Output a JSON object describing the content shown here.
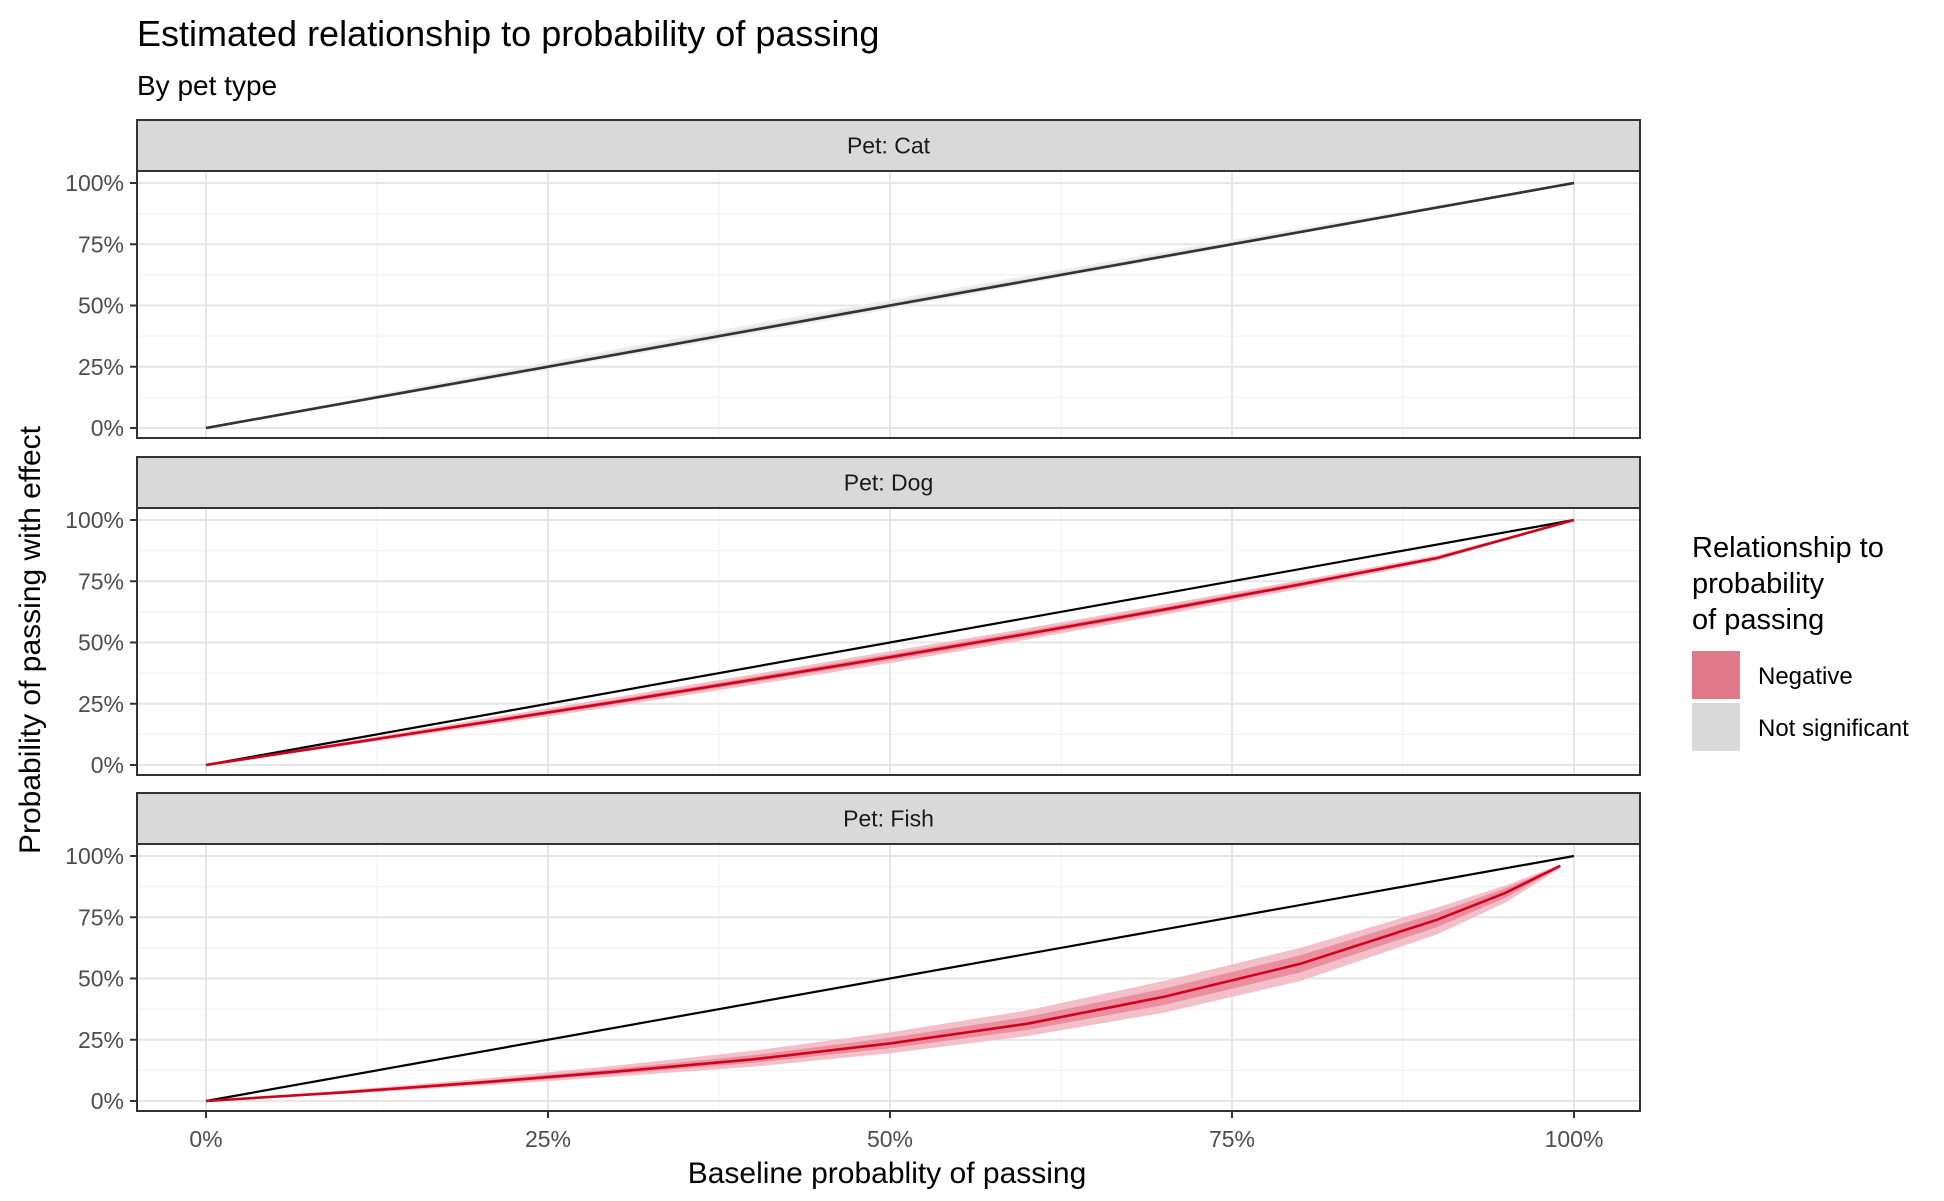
{
  "chart_data": {
    "type": "line",
    "title": "Estimated relationship to probability of passing",
    "subtitle": "By pet type",
    "xlabel": "Baseline probablity of passing",
    "ylabel": "Probability of passing with effect",
    "xlim": [
      0,
      1
    ],
    "ylim": [
      0,
      1
    ],
    "x_ticks": [
      "0%",
      "25%",
      "50%",
      "75%",
      "100%"
    ],
    "y_ticks": [
      "0%",
      "25%",
      "50%",
      "75%",
      "100%"
    ],
    "grid": true,
    "legend": {
      "title_lines": [
        "Relationship to",
        "probability",
        "of passing"
      ],
      "placement": "right",
      "items": [
        {
          "label": "Negative",
          "color": "#e07a8a"
        },
        {
          "label": "Not significant",
          "color": "#d9d9d9"
        }
      ]
    },
    "colors": {
      "negative_line": "#d0021b",
      "negative_band_outer": "#f2b8c2",
      "negative_band_inner": "#e8899a",
      "ns_line": "#333333",
      "ns_band_outer": "#ececec",
      "ns_band_inner": "#dcdcdc",
      "identity_line": "#000000",
      "strip_fill": "#d9d9d9"
    },
    "panels": [
      {
        "strip": "Pet: Cat",
        "relationship": "Not significant",
        "estimate": {
          "x": [
            0,
            0.1,
            0.2,
            0.3,
            0.4,
            0.5,
            0.6,
            0.7,
            0.8,
            0.9,
            1
          ],
          "y": [
            0,
            0.1,
            0.2,
            0.3,
            0.4,
            0.5,
            0.6,
            0.7,
            0.8,
            0.9,
            1
          ]
        },
        "band_outer": {
          "x": [
            0,
            0.1,
            0.2,
            0.3,
            0.4,
            0.5,
            0.6,
            0.7,
            0.8,
            0.9,
            1
          ],
          "lower": [
            0,
            0.095,
            0.19,
            0.287,
            0.385,
            0.485,
            0.588,
            0.69,
            0.793,
            0.896,
            1
          ],
          "upper": [
            0,
            0.11,
            0.217,
            0.322,
            0.424,
            0.523,
            0.622,
            0.72,
            0.816,
            0.909,
            1
          ]
        },
        "band_inner": {
          "x": [
            0,
            0.1,
            0.2,
            0.3,
            0.4,
            0.5,
            0.6,
            0.7,
            0.8,
            0.9,
            1
          ],
          "lower": [
            0,
            0.098,
            0.196,
            0.294,
            0.393,
            0.493,
            0.594,
            0.695,
            0.797,
            0.898,
            1
          ],
          "upper": [
            0,
            0.105,
            0.209,
            0.311,
            0.412,
            0.512,
            0.611,
            0.71,
            0.808,
            0.905,
            1
          ]
        }
      },
      {
        "strip": "Pet: Dog",
        "relationship": "Negative",
        "estimate": {
          "x": [
            0,
            0.1,
            0.2,
            0.3,
            0.4,
            0.5,
            0.6,
            0.7,
            0.8,
            0.9,
            1
          ],
          "y": [
            0,
            0.085,
            0.171,
            0.258,
            0.348,
            0.44,
            0.535,
            0.634,
            0.737,
            0.845,
            1
          ]
        },
        "band_outer": {
          "x": [
            0,
            0.1,
            0.2,
            0.3,
            0.4,
            0.5,
            0.6,
            0.7,
            0.8,
            0.9,
            1
          ],
          "lower": [
            0,
            0.077,
            0.157,
            0.24,
            0.327,
            0.416,
            0.512,
            0.613,
            0.72,
            0.834,
            1
          ],
          "upper": [
            0,
            0.093,
            0.186,
            0.277,
            0.37,
            0.464,
            0.558,
            0.655,
            0.754,
            0.856,
            1
          ]
        },
        "band_inner": {
          "x": [
            0,
            0.1,
            0.2,
            0.3,
            0.4,
            0.5,
            0.6,
            0.7,
            0.8,
            0.9,
            1
          ],
          "lower": [
            0,
            0.081,
            0.164,
            0.249,
            0.338,
            0.428,
            0.523,
            0.624,
            0.729,
            0.84,
            1
          ],
          "upper": [
            0,
            0.089,
            0.178,
            0.267,
            0.359,
            0.452,
            0.547,
            0.645,
            0.746,
            0.85,
            1
          ]
        }
      },
      {
        "strip": "Pet: Fish",
        "relationship": "Negative",
        "estimate": {
          "x": [
            0,
            0.1,
            0.2,
            0.3,
            0.4,
            0.5,
            0.6,
            0.7,
            0.8,
            0.9,
            0.95,
            0.99
          ],
          "y": [
            0,
            0.035,
            0.075,
            0.12,
            0.17,
            0.235,
            0.315,
            0.425,
            0.56,
            0.74,
            0.85,
            0.96
          ]
        },
        "band_outer": {
          "x": [
            0,
            0.1,
            0.2,
            0.3,
            0.4,
            0.5,
            0.6,
            0.7,
            0.8,
            0.9,
            0.95,
            0.99
          ],
          "lower": [
            0,
            0.028,
            0.062,
            0.1,
            0.14,
            0.195,
            0.265,
            0.36,
            0.49,
            0.68,
            0.81,
            0.95
          ],
          "upper": [
            0,
            0.043,
            0.09,
            0.145,
            0.205,
            0.28,
            0.37,
            0.49,
            0.625,
            0.79,
            0.88,
            0.965
          ]
        },
        "band_inner": {
          "x": [
            0,
            0.1,
            0.2,
            0.3,
            0.4,
            0.5,
            0.6,
            0.7,
            0.8,
            0.9,
            0.95,
            0.99
          ],
          "lower": [
            0,
            0.032,
            0.068,
            0.11,
            0.156,
            0.215,
            0.29,
            0.392,
            0.525,
            0.71,
            0.83,
            0.955
          ],
          "upper": [
            0,
            0.039,
            0.082,
            0.132,
            0.187,
            0.258,
            0.343,
            0.458,
            0.595,
            0.768,
            0.868,
            0.962
          ]
        }
      }
    ]
  }
}
